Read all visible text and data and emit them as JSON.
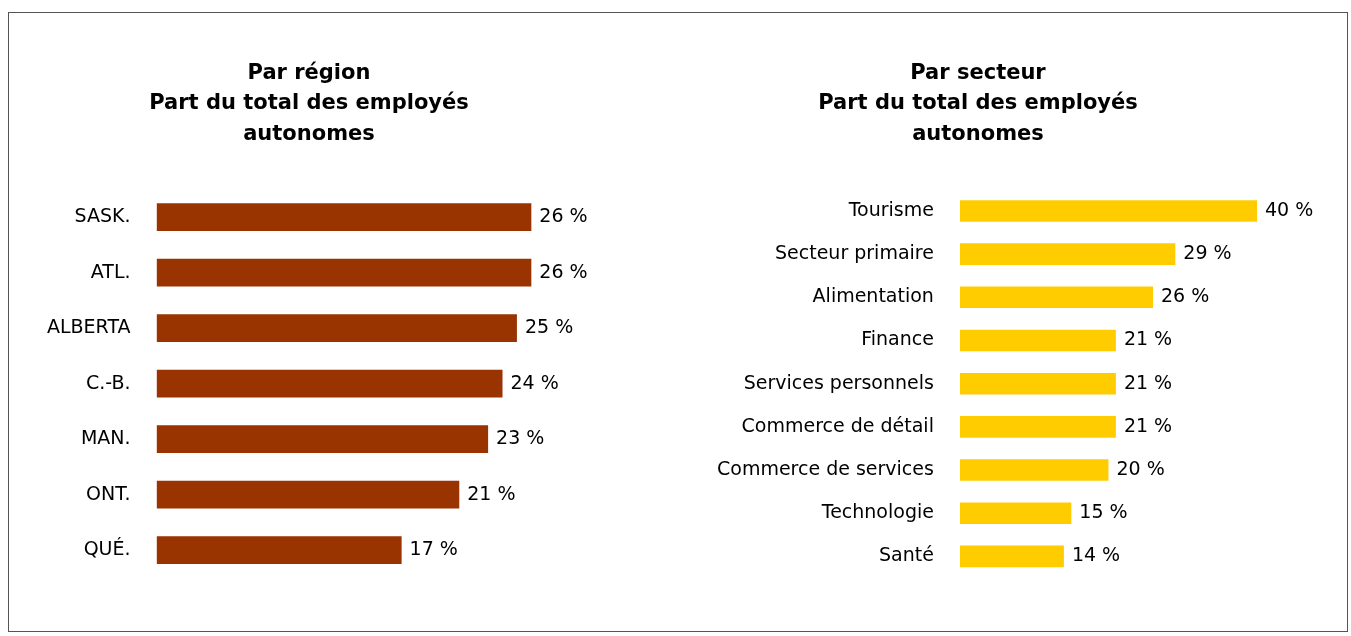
{
  "chart_data": [
    {
      "type": "bar",
      "orientation": "horizontal",
      "title": "Par région\nPart du total des employés\nautonomes",
      "categories": [
        "SASK.",
        "ATL.",
        "ALBERTA",
        "C.-B.",
        "MAN.",
        "ONT.",
        "QUÉ."
      ],
      "values": [
        26,
        26,
        25,
        24,
        23,
        21,
        17
      ],
      "value_labels": [
        "26 %",
        "26 %",
        "25 %",
        "24 %",
        "23 %",
        "21 %",
        "17 %"
      ],
      "color": "#993300",
      "tick_labels": "y",
      "grid": false,
      "legend": false
    },
    {
      "type": "bar",
      "orientation": "horizontal",
      "title": "Par secteur\nPart du total des employés\nautonomes",
      "categories": [
        "Tourisme",
        "Secteur primaire",
        "Alimentation",
        "Finance",
        "Services personnels",
        "Commerce de détail",
        "Commerce de services",
        "Technologie",
        "Santé"
      ],
      "values": [
        40,
        29,
        26,
        21,
        21,
        21,
        20,
        15,
        14
      ],
      "value_labels": [
        "40 %",
        "29 %",
        "26 %",
        "21 %",
        "21 %",
        "21 %",
        "20 %",
        "15 %",
        "14 %"
      ],
      "color": "#ffcc00",
      "tick_labels": "y",
      "grid": false,
      "legend": false
    }
  ]
}
